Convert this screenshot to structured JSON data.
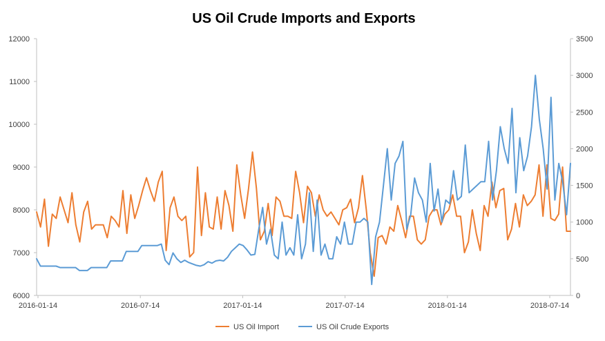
{
  "chart_data": {
    "type": "line",
    "title": "US Oil Crude Imports and Exports",
    "xlabel": "",
    "ylabel": "",
    "y2label": "",
    "x_tick_labels": [
      "2016-01-14",
      "2016-07-14",
      "2017-01-14",
      "2017-07-14",
      "2018-01-14",
      "2018-07-14"
    ],
    "ylim": [
      6000,
      12000
    ],
    "y_ticks": [
      6000,
      7000,
      8000,
      9000,
      10000,
      11000,
      12000
    ],
    "y2lim": [
      0,
      3500
    ],
    "y2_ticks": [
      0,
      500,
      1000,
      1500,
      2000,
      2500,
      3000,
      3500
    ],
    "grid": false,
    "legend_position": "bottom",
    "colors": {
      "import": "#ed7d31",
      "export": "#5b9bd5"
    },
    "series": [
      {
        "name": "US Oil Import",
        "axis": "left",
        "values": [
          7950,
          7600,
          8250,
          7150,
          7900,
          7800,
          8300,
          8000,
          7700,
          8400,
          7650,
          7250,
          7950,
          8200,
          7550,
          7650,
          7650,
          7650,
          7350,
          7850,
          7750,
          7600,
          8450,
          7450,
          8350,
          7800,
          8100,
          8450,
          8750,
          8450,
          8200,
          8650,
          8900,
          7050,
          8050,
          8300,
          7850,
          7750,
          7850,
          6900,
          7000,
          9000,
          7400,
          8400,
          7600,
          7550,
          8300,
          7550,
          8450,
          8100,
          7500,
          9050,
          8350,
          7800,
          8500,
          9350,
          8500,
          7300,
          7500,
          8150,
          7400,
          8300,
          8200,
          7850,
          7850,
          7800,
          8900,
          8400,
          7700,
          8550,
          8400,
          7850,
          8350,
          8000,
          7850,
          7950,
          7800,
          7650,
          8000,
          8050,
          8250,
          7700,
          8050,
          8800,
          8000,
          7000,
          6450,
          7350,
          7400,
          7200,
          7600,
          7500,
          8100,
          7750,
          7350,
          7850,
          7850,
          7300,
          7200,
          7300,
          7850,
          8000,
          8000,
          7650,
          7900,
          8000,
          8350,
          7850,
          7850,
          7000,
          7250,
          8000,
          7450,
          7050,
          8100,
          7850,
          8650,
          8050,
          8450,
          8500,
          7300,
          7550,
          8150,
          7600,
          8350,
          8100,
          8200,
          8350,
          9050,
          7850,
          9050,
          7800,
          7750,
          7900,
          9000,
          7500,
          7500
        ]
      },
      {
        "name": "US Oil Crude Exports",
        "axis": "right",
        "values": [
          500,
          400,
          400,
          400,
          400,
          400,
          380,
          380,
          380,
          380,
          380,
          340,
          340,
          340,
          380,
          380,
          380,
          380,
          380,
          470,
          470,
          470,
          470,
          600,
          600,
          600,
          600,
          680,
          680,
          680,
          680,
          680,
          700,
          480,
          420,
          580,
          500,
          450,
          480,
          450,
          430,
          410,
          400,
          420,
          460,
          440,
          470,
          480,
          470,
          520,
          600,
          650,
          700,
          680,
          620,
          550,
          560,
          900,
          1200,
          700,
          900,
          550,
          500,
          1000,
          550,
          650,
          550,
          1100,
          500,
          700,
          1400,
          600,
          1300,
          550,
          700,
          500,
          500,
          800,
          700,
          1000,
          700,
          700,
          1000,
          1000,
          1050,
          1000,
          150,
          800,
          1000,
          1500,
          2000,
          1300,
          1800,
          1900,
          2100,
          900,
          1100,
          1600,
          1400,
          1300,
          1000,
          1800,
          1150,
          1450,
          1000,
          1300,
          1250,
          1700,
          1300,
          1350,
          2050,
          1400,
          1450,
          1500,
          1550,
          1550,
          2100,
          1300,
          1700,
          2300,
          2000,
          1800,
          2550,
          1400,
          2150,
          1700,
          1900,
          2300,
          3000,
          2400,
          2000,
          1450,
          2700,
          1300,
          1800,
          1550,
          1100,
          1800
        ]
      }
    ]
  }
}
